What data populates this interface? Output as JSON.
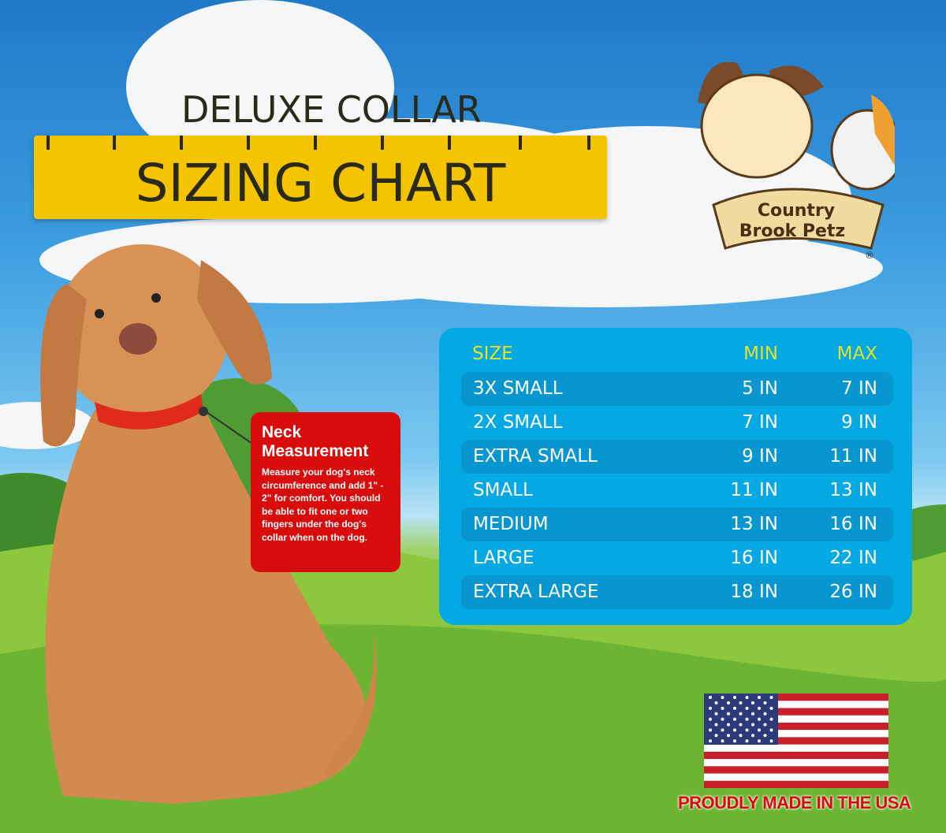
{
  "header": {
    "subtitle": "DELUXE COLLAR",
    "title": "SIZING CHART"
  },
  "logo": {
    "text": "Country Brook Petz",
    "mark": "®"
  },
  "table": {
    "columns": [
      "SIZE",
      "MIN",
      "MAX"
    ],
    "rows": [
      {
        "size": "3X SMALL",
        "min": "5 IN",
        "max": "7 IN"
      },
      {
        "size": "2X SMALL",
        "min": "7 IN",
        "max": "9 IN"
      },
      {
        "size": "EXTRA SMALL",
        "min": "9 IN",
        "max": "11 IN"
      },
      {
        "size": "SMALL",
        "min": "11 IN",
        "max": "13 IN"
      },
      {
        "size": "MEDIUM",
        "min": "13 IN",
        "max": "16 IN"
      },
      {
        "size": "LARGE",
        "min": "16 IN",
        "max": "22 IN"
      },
      {
        "size": "EXTRA LARGE",
        "min": "18 IN",
        "max": "26 IN"
      }
    ]
  },
  "note": {
    "title_line1": "Neck",
    "title_line2": "Measurement",
    "body": "Measure your dog's neck circumference and add 1\" - 2\" for comfort. You should be able to fit one or two fingers under the dog's collar when on the dog."
  },
  "footer": {
    "made_in": "PROUDLY MADE IN THE USA"
  },
  "colors": {
    "panel": "#04a9e3",
    "row_stripe": "#0796d0",
    "header_text": "#e4e22c",
    "ruler": "#f5c400",
    "note": "#d80c0c"
  }
}
